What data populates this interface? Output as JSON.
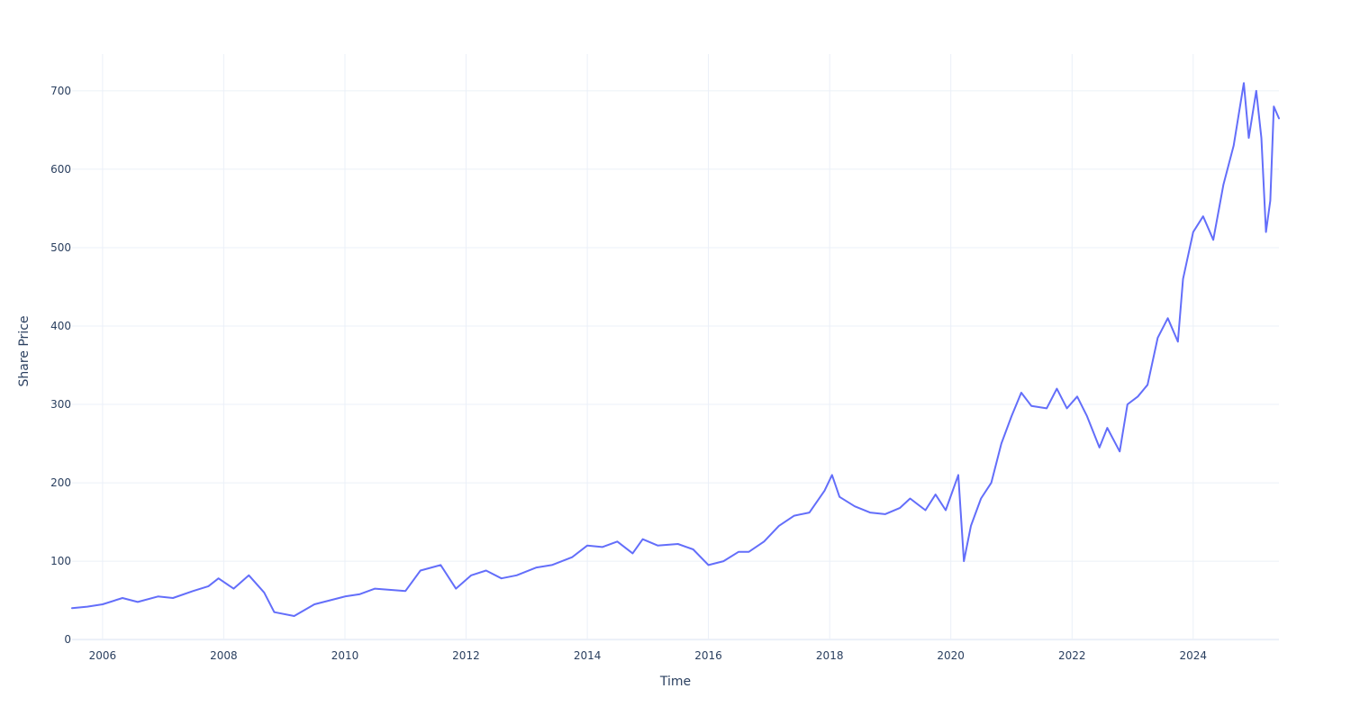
{
  "chart_data": {
    "type": "line",
    "xlabel": "Time",
    "ylabel": "Share Price",
    "x_tick_labels": [
      "2006",
      "2008",
      "2010",
      "2012",
      "2014",
      "2016",
      "2018",
      "2020",
      "2022",
      "2024"
    ],
    "y_tick_labels": [
      "0",
      "100",
      "200",
      "300",
      "400",
      "500",
      "600",
      "700"
    ],
    "xlim": [
      "2005-07-01",
      "2025-06-01"
    ],
    "ylim": [
      -1,
      747
    ],
    "grid": true,
    "series": [
      {
        "color": "#636efa",
        "x": [
          "2005-07-01",
          "2005-10-01",
          "2006-01-01",
          "2006-05-01",
          "2006-08-01",
          "2006-12-01",
          "2007-03-01",
          "2007-07-01",
          "2007-10-01",
          "2007-12-01",
          "2008-03-01",
          "2008-06-01",
          "2008-09-01",
          "2008-11-01",
          "2009-03-01",
          "2009-07-01",
          "2010-01-01",
          "2010-04-01",
          "2010-07-01",
          "2011-01-01",
          "2011-04-01",
          "2011-08-01",
          "2011-11-01",
          "2012-02-01",
          "2012-05-01",
          "2012-08-01",
          "2012-11-01",
          "2013-03-01",
          "2013-06-01",
          "2013-10-01",
          "2014-01-01",
          "2014-04-01",
          "2014-07-01",
          "2014-10-01",
          "2014-12-01",
          "2015-03-01",
          "2015-07-01",
          "2015-10-01",
          "2016-01-01",
          "2016-04-01",
          "2016-07-01",
          "2016-09-01",
          "2016-12-01",
          "2017-03-01",
          "2017-06-01",
          "2017-09-01",
          "2017-12-01",
          "2018-01-15",
          "2018-03-01",
          "2018-06-01",
          "2018-09-01",
          "2018-12-01",
          "2019-03-01",
          "2019-05-01",
          "2019-08-01",
          "2019-10-01",
          "2019-12-01",
          "2020-02-15",
          "2020-03-20",
          "2020-05-01",
          "2020-07-01",
          "2020-09-01",
          "2020-11-01",
          "2021-01-01",
          "2021-03-01",
          "2021-05-01",
          "2021-08-01",
          "2021-10-01",
          "2021-12-01",
          "2022-02-01",
          "2022-04-01",
          "2022-06-15",
          "2022-08-01",
          "2022-10-15",
          "2022-12-01",
          "2023-02-01",
          "2023-04-01",
          "2023-06-01",
          "2023-08-01",
          "2023-10-01",
          "2023-11-01",
          "2024-01-01",
          "2024-03-01",
          "2024-05-01",
          "2024-07-01",
          "2024-09-01",
          "2024-11-01",
          "2024-12-01",
          "2025-01-15",
          "2025-02-15",
          "2025-03-15",
          "2025-04-10",
          "2025-05-01",
          "2025-06-01"
        ],
        "y": [
          40,
          42,
          45,
          53,
          48,
          55,
          53,
          62,
          68,
          78,
          65,
          82,
          60,
          35,
          30,
          45,
          55,
          58,
          65,
          62,
          88,
          95,
          65,
          82,
          88,
          78,
          82,
          92,
          95,
          105,
          120,
          118,
          125,
          110,
          128,
          120,
          122,
          115,
          95,
          100,
          112,
          112,
          125,
          145,
          158,
          162,
          190,
          210,
          182,
          170,
          162,
          160,
          168,
          180,
          165,
          185,
          165,
          210,
          100,
          145,
          180,
          200,
          250,
          285,
          315,
          298,
          295,
          320,
          295,
          310,
          285,
          245,
          270,
          240,
          300,
          310,
          325,
          385,
          410,
          380,
          460,
          520,
          540,
          510,
          580,
          630,
          710,
          640,
          700,
          640,
          520,
          560,
          680,
          665
        ]
      }
    ]
  }
}
